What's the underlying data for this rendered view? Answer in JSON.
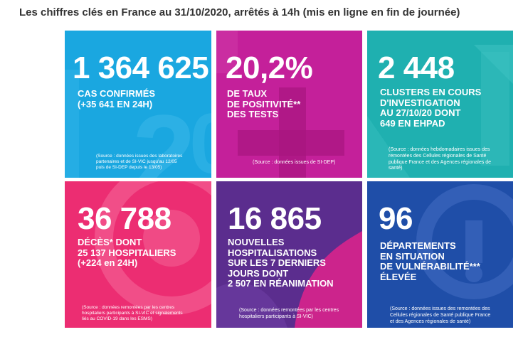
{
  "heading": "Les chiffres clés en France au 31/10/2020, arrêtés à 14h (mis en ligne en fin de journée)",
  "tiles": [
    {
      "id": "cas-confirmes",
      "value": "1 364 625",
      "label": "CAS CONFIRMÉS\n(+35 641 EN 24H)",
      "source": "(Source : données issues des laboratoires\npartenaires et de SI-VIC jusqu'au 12/05\npuis de SI-DEP depuis le 13/05)",
      "color": "#1aa7e0"
    },
    {
      "id": "taux-positivite",
      "value": "20,2%",
      "label": "DE TAUX\nDE POSITIVITÉ**\nDES TESTS",
      "source": "(Source : données issues de SI-DEP)",
      "color": "#c4209a"
    },
    {
      "id": "clusters",
      "value": "2 448",
      "label": "CLUSTERS EN COURS\nD'INVESTIGATION\nAU 27/10/20 DONT\n649 EN EHPAD",
      "source": "(Source : données hebdomadaires issues des\nremontées des Cellules régionales de Santé\npublique France et des Agences régionales de\nsanté)",
      "color": "#1fb0b0"
    },
    {
      "id": "deces",
      "value": "36 788",
      "label": "DÉCÈS* DONT\n25 137 HOSPITALIERS\n(+224 en 24H)",
      "source": "(Source : données remontées par les centres\nhospitaliers participants à SI-VIC et signalements\nliés au COVID-19 dans les ESMS)",
      "color": "#ec2d72"
    },
    {
      "id": "hospitalisations",
      "value": "16 865",
      "label": "NOUVELLES\nHOSPITALISATIONS\nSUR LES 7 DERNIERS\nJOURS DONT\n2 507 EN RÉANIMATION",
      "source": "(Source : données remontées par les centres\nhospitaliers participants à SI-VIC)",
      "color": "#5b2d8e"
    },
    {
      "id": "departements",
      "value": "96",
      "label": "DÉPARTEMENTS\nEN SITUATION\nDE VULNÉRABILITÉ***\nÉLEVÉE",
      "source": "(Source : données issues des remontées des\nCellules régionales de Santé publique France\net des Agences régionales de santé)",
      "color": "#1f4ea8"
    }
  ]
}
